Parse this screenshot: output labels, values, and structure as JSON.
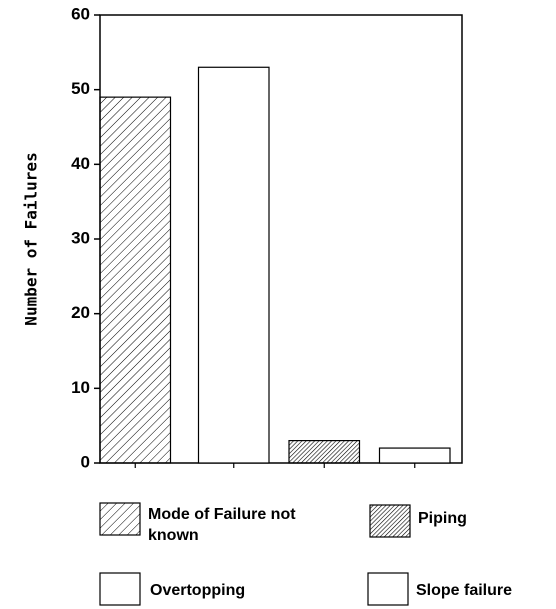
{
  "chart_data": {
    "type": "bar",
    "y_label": "Number of Failures",
    "categories": [
      "Mode of Failure not known",
      "Overtopping",
      "Piping",
      "Slope failure"
    ],
    "values": [
      49,
      53,
      3,
      2
    ],
    "patterns": [
      "hatch",
      "none",
      "dense-hatch",
      "none"
    ],
    "color": "#000000",
    "ylim": [
      0,
      60
    ],
    "yticks": [
      0,
      10,
      20,
      30,
      40,
      50,
      60
    ],
    "legend": true
  }
}
